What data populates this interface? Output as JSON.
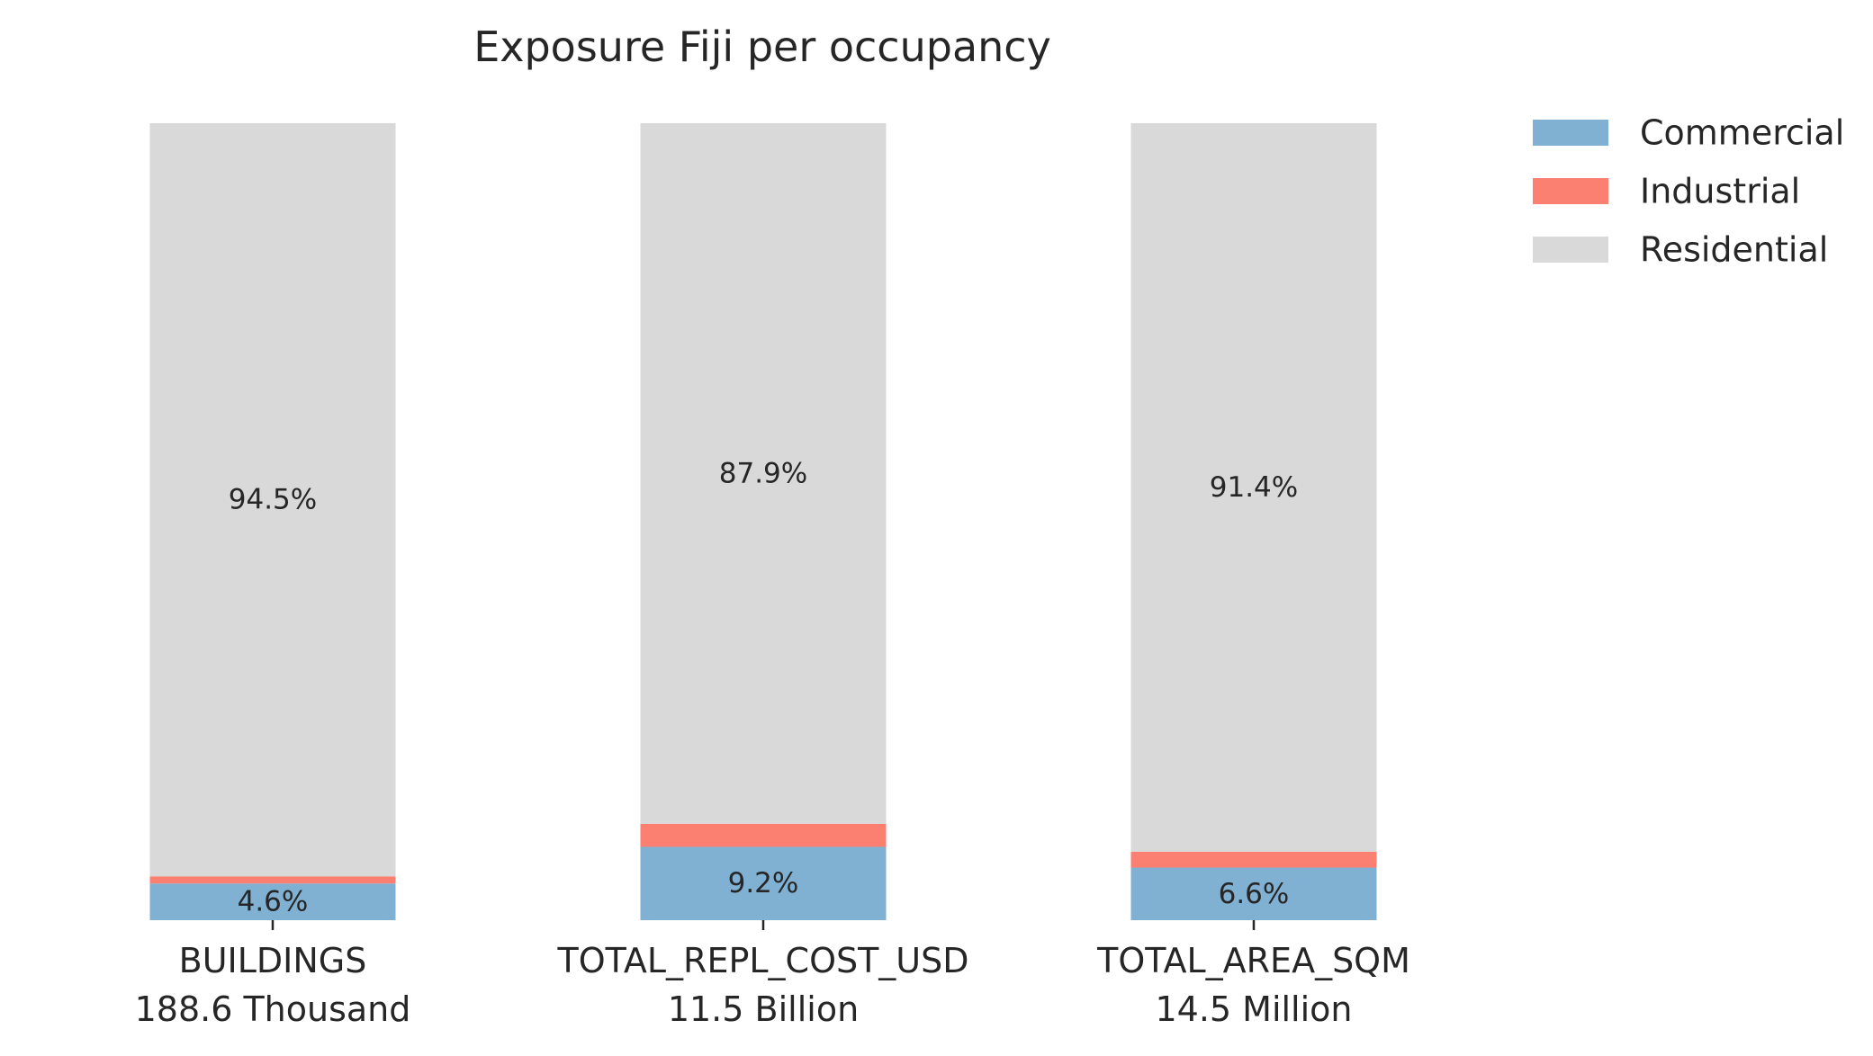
{
  "chart_data": {
    "type": "bar",
    "stacked": true,
    "normalized": true,
    "title": "Exposure Fiji per occupancy",
    "xlabel": "",
    "ylabel": "",
    "ylim": [
      0,
      100
    ],
    "grid": false,
    "categories": [
      "BUILDINGS",
      "TOTAL_REPL_COST_USD",
      "TOTAL_AREA_SQM"
    ],
    "totals": [
      "188.6 Thousand",
      "11.5 Billion",
      "14.5 Million"
    ],
    "series": [
      {
        "name": "Commercial",
        "color": "#80b1d3",
        "values": [
          4.6,
          9.2,
          6.6
        ],
        "labels": [
          "4.6%",
          "9.2%",
          "6.6%"
        ]
      },
      {
        "name": "Industrial",
        "color": "#fb8072",
        "values": [
          0.9,
          2.9,
          2.0
        ],
        "labels": [
          "",
          "",
          ""
        ]
      },
      {
        "name": "Residential",
        "color": "#d9d9d9",
        "values": [
          94.5,
          87.9,
          91.4
        ],
        "labels": [
          "94.5%",
          "87.9%",
          "91.4%"
        ]
      }
    ],
    "legend": {
      "position": "top-right",
      "entries": [
        "Commercial",
        "Industrial",
        "Residential"
      ]
    }
  }
}
